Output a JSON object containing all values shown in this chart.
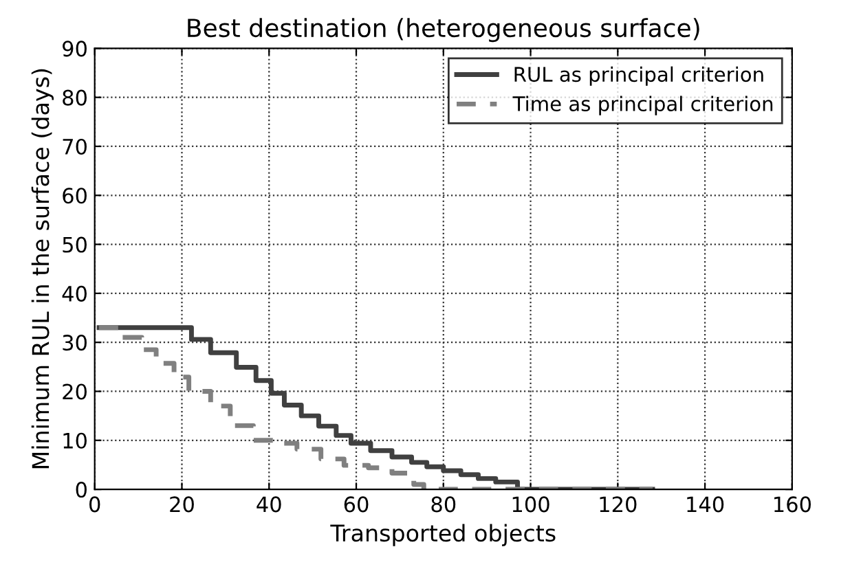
{
  "chart_data": {
    "type": "step",
    "title": "Best destination (heterogeneous surface)",
    "xlabel": "Transported objects",
    "ylabel": "Minimum RUL in the surface (days)",
    "xlim": [
      0,
      160
    ],
    "ylim": [
      0,
      90
    ],
    "xticks": [
      0,
      20,
      40,
      60,
      80,
      100,
      120,
      140,
      160
    ],
    "yticks": [
      0,
      10,
      20,
      30,
      40,
      50,
      60,
      70,
      80,
      90
    ],
    "grid": true,
    "legend": "top right",
    "series": [
      {
        "name": "RUL as principal criterion",
        "color": "#404040",
        "line_style": "solid",
        "x": [
          1,
          22.2,
          26.6,
          32.5,
          37,
          40.5,
          43.5,
          47.4,
          51.4,
          55.4,
          58.8,
          63.3,
          68.2,
          72.7,
          76.2,
          80,
          84,
          88,
          92,
          97,
          128
        ],
        "values": [
          33,
          30.6,
          27.9,
          24.9,
          22.2,
          19.6,
          17.2,
          15,
          12.9,
          11,
          9.4,
          7.9,
          6.6,
          5.5,
          4.6,
          3.8,
          3,
          2.2,
          1.5,
          0,
          0
        ]
      },
      {
        "name": "Time as principal criterion",
        "color": "#808080",
        "line_style": "dashed",
        "x": [
          1,
          6.3,
          10.8,
          14.1,
          18.2,
          21.6,
          26.6,
          31.1,
          36.4,
          40.9,
          46.4,
          51.9,
          57.2,
          62.8,
          68.2,
          73.2,
          75.5,
          128
        ],
        "values": [
          33,
          31,
          28.5,
          25.7,
          22.9,
          20,
          17,
          13,
          10,
          9.4,
          8.2,
          6.2,
          4.9,
          4.4,
          3.3,
          1,
          0,
          0
        ]
      }
    ]
  }
}
